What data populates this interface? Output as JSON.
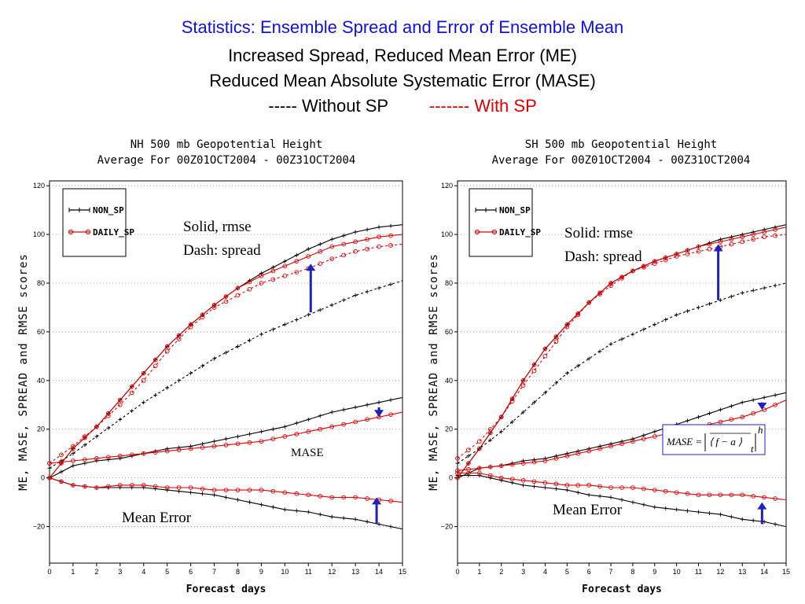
{
  "header": {
    "line1": "Statistics: Ensemble Spread and Error of Ensemble Mean",
    "line2": "Increased Spread, Reduced Mean Error (ME)",
    "line3": "Reduced Mean Absolute Systematic Error (MASE)",
    "legend_without": "----- Without SP",
    "legend_with": "------- With SP"
  },
  "colors": {
    "non_sp": "#000000",
    "daily_sp": "#e00000",
    "arrow": "#2020c0",
    "title_blue": "#1010e0"
  },
  "chart_data": [
    {
      "type": "line",
      "title": "NH 500 mb Geopotential Height",
      "subtitle": "Average For 00Z01OCT2004 - 00Z31OCT2004",
      "xlabel": "Forecast days",
      "ylabel": "ME, MASE, SPREAD and RMSE scores",
      "xlim": [
        0,
        15
      ],
      "ylim": [
        -35,
        122
      ],
      "xticks": [
        "0",
        "1",
        "2",
        "3",
        "4",
        "5",
        "6",
        "7",
        "8",
        "9",
        "10",
        "11",
        "12",
        "13",
        "14",
        "15"
      ],
      "yticks": [
        "120",
        "100",
        "80",
        "60",
        "40",
        "20",
        "0",
        "-20"
      ],
      "legend": [
        "NON_SP",
        "DAILY_SP"
      ],
      "legend_position": "top-left",
      "grid": true,
      "annotations": {
        "rmse_spread_1": "Solid, rmse",
        "rmse_spread_2": "Dash: spread",
        "mase": "MASE",
        "me": "Mean Error"
      },
      "x": [
        0,
        1,
        2,
        3,
        4,
        5,
        6,
        7,
        8,
        9,
        10,
        11,
        12,
        13,
        14,
        15
      ],
      "series": [
        {
          "name": "NON_SP",
          "metric": "rmse",
          "values": [
            0,
            12,
            21,
            32,
            43,
            54,
            63,
            71,
            78,
            84,
            89,
            94,
            98,
            101,
            103,
            104
          ]
        },
        {
          "name": "NON_SP",
          "metric": "spread",
          "values": [
            4,
            10,
            17,
            24,
            31,
            37,
            43,
            49,
            54,
            59,
            63,
            67,
            71,
            75,
            78,
            81
          ]
        },
        {
          "name": "NON_SP",
          "metric": "mase",
          "values": [
            0,
            5,
            7,
            8,
            10,
            12,
            13,
            15,
            17,
            19,
            21,
            24,
            27,
            29,
            31,
            33
          ]
        },
        {
          "name": "NON_SP",
          "metric": "me",
          "values": [
            0,
            -3,
            -4,
            -4,
            -4,
            -5,
            -6,
            -7,
            -9,
            -11,
            -13,
            -14,
            -16,
            -17,
            -19,
            -21
          ]
        },
        {
          "name": "DAILY_SP",
          "metric": "rmse",
          "values": [
            0,
            12,
            21,
            32,
            43,
            54,
            63,
            71,
            78,
            83,
            87,
            91,
            95,
            97,
            99,
            100
          ]
        },
        {
          "name": "DAILY_SP",
          "metric": "spread",
          "values": [
            6,
            13,
            21,
            30,
            40,
            52,
            62,
            70,
            75,
            80,
            83,
            86,
            90,
            93,
            95,
            96
          ]
        },
        {
          "name": "DAILY_SP",
          "metric": "mase",
          "values": [
            6,
            7,
            8,
            9,
            10,
            11,
            12,
            13,
            14,
            15,
            17,
            19,
            21,
            23,
            25,
            27
          ]
        },
        {
          "name": "DAILY_SP",
          "metric": "me",
          "values": [
            0,
            -3,
            -4,
            -3,
            -3,
            -4,
            -4,
            -5,
            -5,
            -5,
            -6,
            -7,
            -8,
            -8,
            -9,
            -10
          ]
        }
      ]
    },
    {
      "type": "line",
      "title": "SH 500 mb Geopotential Height",
      "subtitle": "Average For 00Z01OCT2004 - 00Z31OCT2004",
      "xlabel": "Forecast days",
      "ylabel": "ME, MASE, SPREAD and RMSE scores",
      "xlim": [
        0,
        15
      ],
      "ylim": [
        -35,
        122
      ],
      "xticks": [
        "0",
        "1",
        "2",
        "3",
        "4",
        "5",
        "6",
        "7",
        "8",
        "9",
        "10",
        "11",
        "12",
        "13",
        "14",
        "15"
      ],
      "yticks": [
        "120",
        "100",
        "80",
        "60",
        "40",
        "20",
        "0",
        "-20"
      ],
      "legend": [
        "NON_SP",
        "DAILY_SP"
      ],
      "legend_position": "top-left",
      "grid": true,
      "annotations": {
        "rmse_spread_1": "Solid: rmse",
        "rmse_spread_2": "Dash: spread",
        "me": "Mean Error"
      },
      "formula": {
        "lhs": "MASE =",
        "body": "⟨ f − a ⟩",
        "sub": "t",
        "sup": "h"
      },
      "x": [
        0,
        1,
        2,
        3,
        4,
        5,
        6,
        7,
        8,
        9,
        10,
        11,
        12,
        13,
        14,
        15
      ],
      "series": [
        {
          "name": "NON_SP",
          "metric": "rmse",
          "values": [
            0,
            12,
            25,
            40,
            53,
            63,
            72,
            80,
            85,
            89,
            92,
            95,
            98,
            100,
            102,
            104
          ]
        },
        {
          "name": "NON_SP",
          "metric": "spread",
          "values": [
            6,
            12,
            19,
            27,
            35,
            43,
            49,
            55,
            59,
            63,
            67,
            70,
            73,
            76,
            78,
            80
          ]
        },
        {
          "name": "NON_SP",
          "metric": "mase",
          "values": [
            0,
            4,
            5,
            7,
            8,
            10,
            12,
            14,
            16,
            19,
            22,
            25,
            28,
            31,
            33,
            35
          ]
        },
        {
          "name": "NON_SP",
          "metric": "me",
          "values": [
            1,
            1,
            -1,
            -3,
            -4,
            -5,
            -7,
            -8,
            -10,
            -12,
            -13,
            -14,
            -15,
            -17,
            -18,
            -20
          ]
        },
        {
          "name": "DAILY_SP",
          "metric": "rmse",
          "values": [
            0,
            12,
            25,
            40,
            53,
            63,
            72,
            80,
            85,
            89,
            92,
            95,
            97,
            99,
            101,
            103
          ]
        },
        {
          "name": "DAILY_SP",
          "metric": "spread",
          "values": [
            8,
            15,
            25,
            38,
            50,
            62,
            72,
            79,
            85,
            88,
            91,
            93,
            95,
            97,
            99,
            100
          ]
        },
        {
          "name": "DAILY_SP",
          "metric": "mase",
          "values": [
            3,
            4,
            5,
            6,
            7,
            9,
            11,
            13,
            15,
            17,
            19,
            21,
            23,
            25,
            28,
            32
          ]
        },
        {
          "name": "DAILY_SP",
          "metric": "me",
          "values": [
            2,
            2,
            0,
            -1,
            -2,
            -3,
            -3,
            -4,
            -4,
            -5,
            -6,
            -7,
            -7,
            -7,
            -8,
            -9
          ]
        }
      ]
    }
  ]
}
